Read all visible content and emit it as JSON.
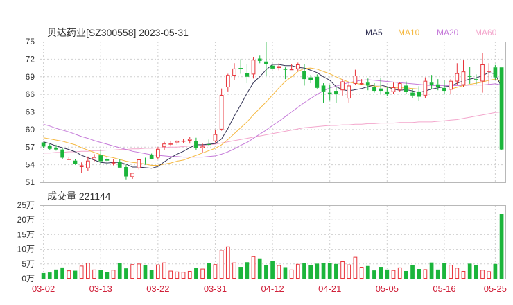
{
  "chart_data": {
    "type": "candlestick",
    "title": "贝达药业[SZ300558] 2023-05-31",
    "legend": [
      {
        "name": "MA5",
        "color": "#333355"
      },
      {
        "name": "MA10",
        "color": "#f5b942"
      },
      {
        "name": "MA20",
        "color": "#c57ad9"
      },
      {
        "name": "MA60",
        "color": "#f3a6cc"
      }
    ],
    "price_axis": {
      "ticks": [
        75,
        72,
        69,
        66,
        63,
        60,
        57,
        54,
        51
      ],
      "min": 51,
      "max": 75
    },
    "volume_title": "成交量 221144",
    "volume_axis": {
      "ticks": [
        {
          "v": 25,
          "label": "25万"
        },
        {
          "v": 20,
          "label": "20万"
        },
        {
          "v": 15,
          "label": "15万"
        },
        {
          "v": 10,
          "label": "10万"
        },
        {
          "v": 5,
          "label": "5万"
        },
        {
          "v": 0,
          "label": "0万"
        }
      ],
      "min": 0,
      "max": 25
    },
    "x_labels": [
      {
        "index": 0,
        "label": "03-02"
      },
      {
        "index": 9,
        "label": "03-13"
      },
      {
        "index": 18,
        "label": "03-22"
      },
      {
        "index": 27,
        "label": "03-31"
      },
      {
        "index": 36,
        "label": "04-12"
      },
      {
        "index": 45,
        "label": "04-21"
      },
      {
        "index": 54,
        "label": "05-05"
      },
      {
        "index": 63,
        "label": "05-16"
      },
      {
        "index": 71,
        "label": "05-25"
      }
    ],
    "up_color": "#e8333a",
    "down_color": "#1bb53b",
    "ohlc": [
      [
        57.8,
        57.8,
        56.8,
        57.1
      ],
      [
        57.2,
        57.5,
        56.5,
        56.7
      ],
      [
        56.9,
        57.4,
        56.4,
        56.6
      ],
      [
        56.6,
        56.9,
        55.0,
        55.2
      ],
      [
        55.0,
        55.3,
        54.8,
        55.0
      ],
      [
        54.7,
        55.0,
        54.0,
        54.1
      ],
      [
        53.6,
        54.4,
        52.6,
        53.9
      ],
      [
        53.4,
        55.4,
        52.9,
        54.7
      ],
      [
        54.9,
        55.8,
        54.6,
        55.3
      ],
      [
        55.6,
        56.6,
        54.1,
        54.6
      ],
      [
        55.0,
        55.3,
        54.0,
        54.7
      ],
      [
        54.4,
        55.0,
        53.9,
        54.4
      ],
      [
        54.5,
        55.0,
        53.5,
        53.5
      ],
      [
        53.6,
        54.0,
        51.5,
        52.0
      ],
      [
        51.9,
        52.6,
        51.6,
        52.6
      ],
      [
        53.4,
        55.0,
        53.2,
        54.9
      ],
      [
        54.2,
        55.2,
        54.0,
        54.1
      ],
      [
        55.7,
        55.9,
        54.9,
        55.0
      ],
      [
        55.2,
        57.0,
        54.9,
        56.7
      ],
      [
        57.0,
        57.9,
        56.5,
        57.6
      ],
      [
        57.6,
        58.1,
        57.1,
        57.6
      ],
      [
        57.8,
        58.2,
        57.4,
        58.1
      ],
      [
        58.0,
        58.4,
        57.7,
        58.1
      ],
      [
        58.1,
        58.8,
        57.6,
        58.4
      ],
      [
        58.0,
        58.6,
        56.5,
        56.8
      ],
      [
        56.8,
        57.6,
        56.1,
        57.1
      ],
      [
        57.5,
        58.3,
        57.2,
        57.4
      ],
      [
        58.0,
        60.0,
        57.8,
        59.2
      ],
      [
        60.0,
        67.0,
        59.8,
        65.9
      ],
      [
        67.2,
        69.5,
        66.5,
        69.3
      ],
      [
        69.2,
        71.3,
        68.5,
        70.4
      ],
      [
        70.5,
        72.0,
        69.5,
        70.4
      ],
      [
        69.6,
        71.1,
        67.9,
        69.0
      ],
      [
        69.4,
        72.4,
        68.7,
        71.9
      ],
      [
        72.1,
        72.6,
        71.3,
        71.7
      ],
      [
        71.6,
        75.0,
        69.1,
        71.2
      ],
      [
        70.9,
        71.0,
        70.4,
        70.4
      ],
      [
        70.5,
        71.3,
        70.1,
        70.8
      ],
      [
        70.3,
        70.6,
        68.6,
        70.2
      ],
      [
        70.3,
        71.2,
        70.2,
        70.3
      ],
      [
        70.3,
        71.4,
        70.0,
        71.1
      ],
      [
        70.0,
        71.2,
        67.5,
        68.6
      ],
      [
        68.9,
        69.3,
        67.9,
        68.5
      ],
      [
        69.0,
        69.4,
        67.0,
        67.1
      ],
      [
        67.5,
        67.9,
        64.6,
        66.5
      ],
      [
        66.3,
        67.6,
        65.0,
        66.1
      ],
      [
        66.6,
        67.3,
        64.6,
        66.0
      ],
      [
        66.7,
        68.6,
        65.8,
        68.2
      ],
      [
        65.3,
        68.0,
        64.6,
        67.5
      ],
      [
        67.8,
        70.2,
        67.6,
        69.2
      ],
      [
        67.8,
        68.6,
        67.6,
        67.9
      ],
      [
        68.0,
        68.7,
        66.7,
        67.5
      ],
      [
        67.3,
        67.9,
        66.3,
        66.6
      ],
      [
        67.0,
        68.8,
        66.0,
        66.6
      ],
      [
        66.5,
        67.3,
        65.7,
        66.0
      ],
      [
        66.4,
        68.0,
        66.1,
        67.2
      ],
      [
        66.7,
        68.1,
        66.5,
        67.9
      ],
      [
        67.5,
        68.2,
        66.0,
        66.4
      ],
      [
        66.3,
        67.0,
        65.4,
        65.8
      ],
      [
        66.5,
        67.4,
        64.9,
        65.6
      ],
      [
        65.8,
        68.9,
        65.4,
        68.3
      ],
      [
        68.0,
        69.3,
        66.9,
        67.6
      ],
      [
        67.7,
        68.6,
        66.7,
        67.3
      ],
      [
        67.1,
        68.4,
        66.0,
        66.6
      ],
      [
        66.8,
        68.6,
        66.1,
        68.3
      ],
      [
        68.2,
        71.3,
        67.6,
        69.6
      ],
      [
        67.6,
        71.8,
        67.2,
        69.9
      ],
      [
        69.1,
        70.7,
        67.8,
        69.0
      ],
      [
        68.6,
        69.4,
        67.7,
        68.5
      ],
      [
        68.2,
        73.0,
        66.3,
        71.1
      ],
      [
        70.0,
        71.3,
        67.7,
        70.0
      ],
      [
        70.6,
        71.0,
        68.5,
        68.9
      ],
      [
        70.6,
        70.6,
        56.5,
        56.6
      ]
    ],
    "volume": [
      1.9,
      2.1,
      3.1,
      3.8,
      2.8,
      2.7,
      4.4,
      5.4,
      3.1,
      2.9,
      2.3,
      3.0,
      5.2,
      3.5,
      4.9,
      5.1,
      4.7,
      3.0,
      4.8,
      5.5,
      2.7,
      2.4,
      2.3,
      2.6,
      3.6,
      3.4,
      5.2,
      4.9,
      9.8,
      10.9,
      5.5,
      4.0,
      5.6,
      7.6,
      6.9,
      4.7,
      6.0,
      4.6,
      3.9,
      3.1,
      5.0,
      5.2,
      4.6,
      5.1,
      5.2,
      5.3,
      5.0,
      5.9,
      4.8,
      7.4,
      4.0,
      4.3,
      2.8,
      4.0,
      3.1,
      2.9,
      3.8,
      2.6,
      4.7,
      3.3,
      3.2,
      5.5,
      3.1,
      5.2,
      4.7,
      3.7,
      2.6,
      5.1,
      4.5,
      3.0,
      2.5,
      5.0,
      22.1
    ],
    "ma5": [
      57.9,
      57.6,
      57.2,
      56.9,
      56.6,
      56.2,
      55.6,
      55.2,
      54.8,
      54.4,
      54.3,
      54.4,
      54.4,
      54.1,
      53.6,
      53.6,
      53.5,
      53.4,
      53.7,
      54.5,
      55.2,
      55.8,
      56.3,
      56.9,
      57.4,
      57.4,
      57.5,
      57.6,
      58.4,
      60.2,
      62.3,
      64.2,
      66.2,
      68.0,
      69.0,
      70.2,
      71.1,
      71.1,
      70.9,
      70.9,
      70.6,
      70.5,
      70.1,
      69.7,
      69.0,
      68.4,
      67.3,
      66.8,
      66.6,
      66.8,
      67.0,
      67.3,
      67.6,
      67.6,
      67.3,
      66.9,
      66.7,
      66.8,
      66.6,
      66.3,
      66.6,
      66.9,
      67.1,
      67.3,
      67.4,
      67.9,
      68.3,
      68.6,
      68.8,
      69.2,
      69.7,
      69.5,
      67.2
    ],
    "ma10": [
      58.6,
      58.4,
      58.2,
      58.0,
      57.7,
      57.4,
      56.9,
      56.5,
      56.1,
      55.7,
      55.4,
      55.2,
      54.9,
      54.6,
      54.4,
      54.3,
      54.1,
      53.9,
      53.9,
      54.1,
      54.3,
      54.6,
      54.8,
      55.2,
      55.6,
      56.0,
      56.4,
      56.8,
      57.4,
      58.3,
      59.3,
      60.3,
      61.3,
      62.5,
      63.6,
      64.7,
      65.9,
      67.1,
      68.2,
      69.0,
      69.9,
      70.4,
      70.5,
      70.3,
      69.9,
      69.5,
      69.0,
      68.5,
      68.1,
      67.9,
      67.7,
      67.6,
      67.4,
      67.3,
      67.2,
      67.1,
      67.1,
      67.1,
      67.0,
      66.9,
      66.9,
      66.9,
      66.9,
      66.9,
      66.9,
      67.2,
      67.5,
      67.7,
      67.9,
      68.1,
      68.4,
      68.6,
      68.2
    ],
    "ma20": [
      60.9,
      60.6,
      60.2,
      59.9,
      59.6,
      59.2,
      58.8,
      58.5,
      58.1,
      57.8,
      57.5,
      57.2,
      56.9,
      56.6,
      56.3,
      56.1,
      55.9,
      55.7,
      55.6,
      55.5,
      55.4,
      55.4,
      55.3,
      55.3,
      55.3,
      55.3,
      55.4,
      55.5,
      55.8,
      56.2,
      56.7,
      57.3,
      57.8,
      58.5,
      59.2,
      59.9,
      60.7,
      61.4,
      62.2,
      63.0,
      63.8,
      64.6,
      65.3,
      66.0,
      66.6,
      67.1,
      67.4,
      67.7,
      68.0,
      68.2,
      68.4,
      68.5,
      68.4,
      68.3,
      68.2,
      68.1,
      68.0,
      67.9,
      67.8,
      67.7,
      67.6,
      67.5,
      67.5,
      67.5,
      67.5,
      67.5,
      67.5,
      67.6,
      67.6,
      67.6,
      67.7,
      67.8,
      67.6
    ],
    "ma60": [
      56.0,
      56.0,
      56.1,
      56.1,
      56.2,
      56.2,
      56.3,
      56.3,
      56.4,
      56.4,
      56.5,
      56.5,
      56.6,
      56.6,
      56.7,
      56.7,
      56.8,
      56.8,
      56.9,
      56.9,
      57.0,
      57.0,
      57.1,
      57.2,
      57.2,
      57.3,
      57.4,
      57.5,
      57.7,
      57.9,
      58.1,
      58.3,
      58.5,
      58.7,
      58.9,
      59.1,
      59.3,
      59.5,
      59.7,
      59.9,
      60.1,
      60.3,
      60.4,
      60.5,
      60.6,
      60.7,
      60.7,
      60.8,
      60.8,
      60.9,
      60.9,
      61.0,
      61.0,
      61.1,
      61.1,
      61.1,
      61.2,
      61.2,
      61.2,
      61.3,
      61.3,
      61.3,
      61.4,
      61.5,
      61.6,
      61.7,
      61.9,
      62.1,
      62.3,
      62.5,
      62.7,
      62.9,
      63.0
    ]
  }
}
